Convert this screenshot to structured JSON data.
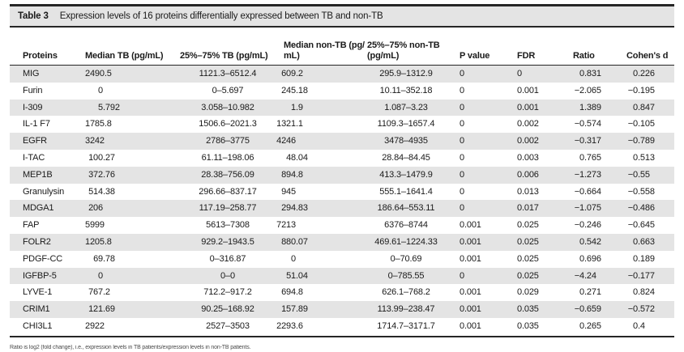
{
  "table": {
    "label": "Table 3",
    "title": "Expression levels of 16 proteins differentially expressed between TB and non-TB",
    "columns": [
      {
        "id": "protein",
        "lines": [
          "Proteins"
        ],
        "type": "text"
      },
      {
        "id": "median_tb",
        "lines": [
          "Median TB (pg/mL)"
        ],
        "type": "dec"
      },
      {
        "id": "range_tb",
        "lines": [
          "25%–75% TB (pg/mL)"
        ],
        "type": "center"
      },
      {
        "id": "median_ntb",
        "lines": [
          "Median non-TB (pg/",
          "mL)"
        ],
        "type": "dec"
      },
      {
        "id": "range_ntb",
        "lines": [
          "25%–75% non-TB",
          "(pg/mL)"
        ],
        "type": "center"
      },
      {
        "id": "p_value",
        "lines": [
          "P value"
        ],
        "type": "left"
      },
      {
        "id": "fdr",
        "lines": [
          "FDR"
        ],
        "type": "left"
      },
      {
        "id": "ratio",
        "lines": [
          "Ratio"
        ],
        "type": "dec"
      },
      {
        "id": "cohens_d",
        "lines": [
          "Cohen's d"
        ],
        "type": "dec"
      }
    ],
    "rows": [
      [
        "MIG",
        "2490.5",
        "1121.3–6512.4",
        "609.2",
        "295.9–1312.9",
        "0",
        "0",
        "0.831",
        "0.226"
      ],
      [
        "Furin",
        "0",
        "0–5.697",
        "245.18",
        "10.11–352.18",
        "0",
        "0.001",
        "−2.065",
        "−0.195"
      ],
      [
        "I-309",
        "5.792",
        "3.058–10.982",
        "1.9",
        "1.087–3.23",
        "0",
        "0.001",
        "1.389",
        "0.847"
      ],
      [
        "IL-1 F7",
        "1785.8",
        "1506.6–2021.3",
        "1321.1",
        "1109.3–1657.4",
        "0",
        "0.002",
        "−0.574",
        "−0.105"
      ],
      [
        "EGFR",
        "3242",
        "2786–3775",
        "4246",
        "3478–4935",
        "0",
        "0.002",
        "−0.317",
        "−0.789"
      ],
      [
        "I-TAC",
        "100.27",
        "61.11–198.06",
        "48.04",
        "28.84–84.45",
        "0",
        "0.003",
        "0.765",
        "0.513"
      ],
      [
        "MEP1B",
        "372.76",
        "28.38–756.09",
        "894.8",
        "413.3–1479.9",
        "0",
        "0.006",
        "−1.273",
        "−0.55"
      ],
      [
        "Granulysin",
        "514.38",
        "296.66–837.17",
        "945",
        "555.1–1641.4",
        "0",
        "0.013",
        "−0.664",
        "−0.558"
      ],
      [
        "MDGA1",
        "206",
        "117.19–258.77",
        "294.83",
        "186.64–553.11",
        "0",
        "0.017",
        "−1.075",
        "−0.486"
      ],
      [
        "FAP",
        "5999",
        "5613–7308",
        "7213",
        "6376–8744",
        "0.001",
        "0.025",
        "−0.246",
        "−0.645"
      ],
      [
        "FOLR2",
        "1205.8",
        "929.2–1943.5",
        "880.07",
        "469.61–1224.33",
        "0.001",
        "0.025",
        "0.542",
        "0.663"
      ],
      [
        "PDGF-CC",
        "69.78",
        "0–316.87",
        "0",
        "0–70.69",
        "0.001",
        "0.025",
        "0.696",
        "0.189"
      ],
      [
        "IGFBP-5",
        "0",
        "0–0",
        "51.04",
        "0–785.55",
        "0",
        "0.025",
        "−4.24",
        "−0.177"
      ],
      [
        "LYVE-1",
        "767.2",
        "712.2–917.2",
        "694.8",
        "626.1–768.2",
        "0.001",
        "0.029",
        "0.271",
        "0.824"
      ],
      [
        "CRIM1",
        "121.69",
        "90.25–168.92",
        "157.89",
        "113.99–238.47",
        "0.001",
        "0.035",
        "−0.659",
        "−0.572"
      ],
      [
        "CHI3L1",
        "2922",
        "2527–3503",
        "2293.6",
        "1714.7–3171.7",
        "0.001",
        "0.035",
        "0.265",
        "0.4"
      ]
    ],
    "footnote": "Ratio is log2 (fold change), i.e., expression levels in TB patients/expression levels in non-TB patients."
  }
}
